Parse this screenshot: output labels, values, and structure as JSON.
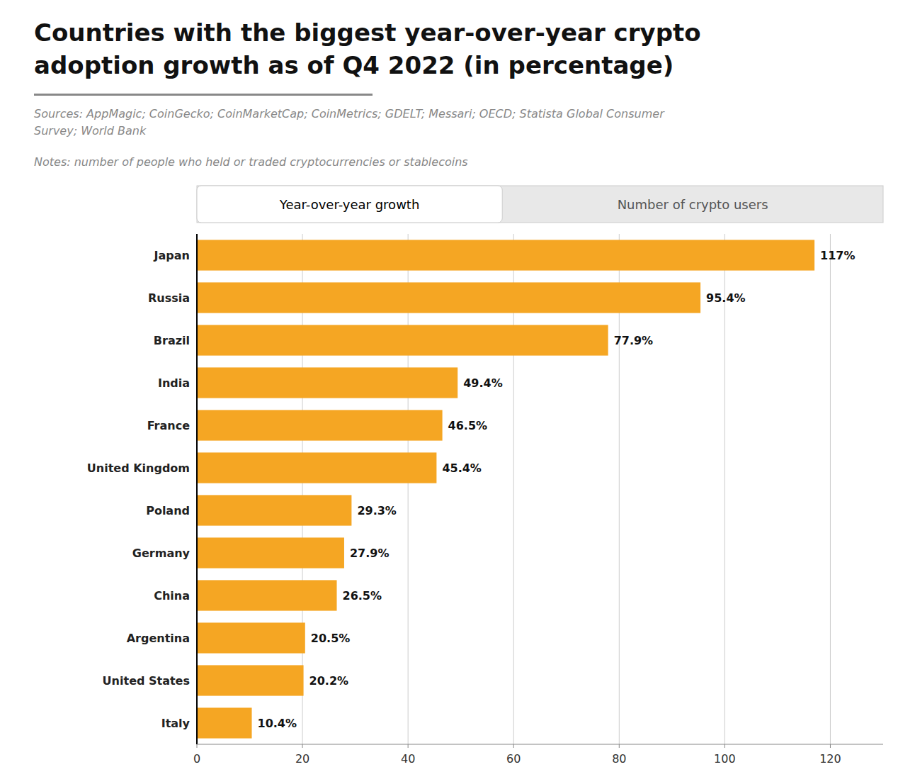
{
  "chart_data": {
    "type": "bar",
    "orientation": "horizontal",
    "title": "Countries with the biggest year-over-year crypto\nadoption growth as of Q4 2022 (in percentage)",
    "annotations": [
      "Sources: AppMagic; CoinGecko; CoinMarketCap; CoinMetrics; GDELT; Messari; OECD; Statista Global Consumer\nSurvey; World Bank",
      "Notes: number of people who held or traded cryptocurrencies or stablecoins",
      "Year-over-year growth",
      "Number of crypto users"
    ],
    "categories": [
      "Italy",
      "United States",
      "Argentina",
      "China",
      "Germany",
      "Poland",
      "United Kingdom",
      "France",
      "India",
      "Brazil",
      "Russia",
      "Japan"
    ],
    "values": [
      10.4,
      20.2,
      20.5,
      26.5,
      27.9,
      29.3,
      45.4,
      46.5,
      49.4,
      77.9,
      95.4,
      117
    ],
    "value_labels": [
      "10.4%",
      "20.2%",
      "20.5%",
      "26.5%",
      "27.9%",
      "29.3%",
      "45.4%",
      "46.5%",
      "49.4%",
      "77.9%",
      "95.4%",
      "117%"
    ],
    "data_labels": true,
    "color": "#F5A623",
    "xlim": [
      0,
      130
    ],
    "xticks": [
      0,
      20,
      40,
      60,
      80,
      100,
      120
    ],
    "grid": true
  }
}
